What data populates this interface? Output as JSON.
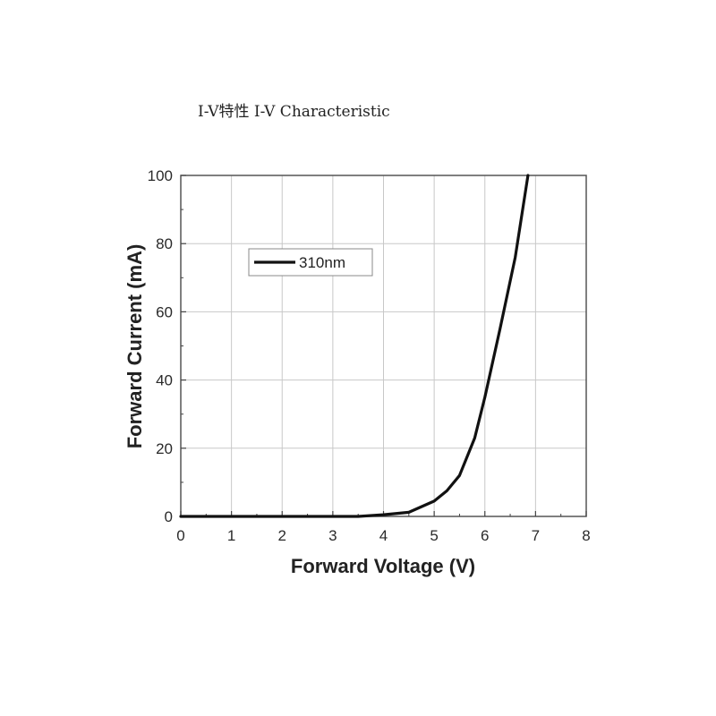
{
  "caption": "I-V特性 I-V Characteristic",
  "chart_data": {
    "type": "line",
    "xlabel": "Forward Voltage (V)",
    "ylabel": "Forward Current (mA)",
    "xlim": [
      0,
      8
    ],
    "ylim": [
      0,
      100
    ],
    "x_ticks": [
      "0",
      "1",
      "2",
      "3",
      "4",
      "5",
      "6",
      "7",
      "8"
    ],
    "y_ticks": [
      "0",
      "20",
      "40",
      "60",
      "80",
      "100"
    ],
    "grid": true,
    "legend_position": "top-left",
    "series": [
      {
        "name": "310nm",
        "color": "#111111",
        "x": [
          0,
          3.5,
          4.0,
          4.5,
          5.0,
          5.25,
          5.5,
          5.8,
          6.0,
          6.3,
          6.6,
          6.85
        ],
        "y": [
          0,
          0,
          0.5,
          1.2,
          4.5,
          7.5,
          12,
          23,
          35,
          55,
          76,
          100
        ]
      }
    ]
  }
}
